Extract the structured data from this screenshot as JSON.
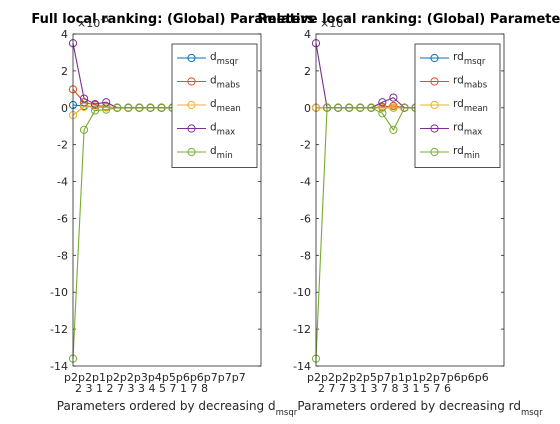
{
  "chart_data": [
    {
      "type": "line",
      "title": "Full local ranking: (Global) Parameters",
      "exponent_label": "×10",
      "exponent_value": "-6",
      "xlabel_main": "Parameters ordered by decreasing d",
      "xlabel_sub": "msqr",
      "ylim": [
        -14,
        4
      ],
      "yticks": [
        4,
        2,
        0,
        -2,
        -4,
        -6,
        -8,
        -10,
        -12,
        -14
      ],
      "xlim": [
        1,
        18
      ],
      "xtick_labels_text": [
        "p2p2p1p2p2p3p4p5p6p6p7p7p7",
        "2 3 1 2 7 3 3 4 5 7 1 7 8"
      ],
      "legend_location": "top-right",
      "legend": [
        {
          "base": "d",
          "sub": "msqr",
          "color": "#0072BD"
        },
        {
          "base": "d",
          "sub": "mabs",
          "color": "#D95319"
        },
        {
          "base": "d",
          "sub": "mean",
          "color": "#EDB120"
        },
        {
          "base": "d",
          "sub": "max",
          "color": "#7E2F8E"
        },
        {
          "base": "d",
          "sub": "min",
          "color": "#77AC30"
        }
      ],
      "series": [
        {
          "name": "d_msqr",
          "color": "#0072BD",
          "x": [
            1,
            2,
            3,
            4,
            5,
            6,
            7,
            8,
            9,
            10,
            11,
            12,
            13
          ],
          "values": [
            0.15,
            0.1,
            0.05,
            0.02,
            0,
            0,
            0,
            0,
            0,
            0,
            0,
            0,
            0
          ]
        },
        {
          "name": "d_mabs",
          "color": "#D95319",
          "x": [
            1,
            2,
            3,
            4,
            5,
            6,
            7,
            8,
            9,
            10,
            11,
            12,
            13
          ],
          "values": [
            1.0,
            0.3,
            0.15,
            0.05,
            0,
            0,
            0,
            0,
            0,
            0,
            0,
            0,
            0
          ]
        },
        {
          "name": "d_mean",
          "color": "#EDB120",
          "x": [
            1,
            2,
            3,
            4,
            5,
            6,
            7,
            8,
            9,
            10,
            11,
            12,
            13
          ],
          "values": [
            -0.4,
            0.05,
            0.05,
            0.02,
            0,
            0,
            0,
            0,
            0,
            0,
            0,
            0,
            0
          ]
        },
        {
          "name": "d_max",
          "color": "#7E2F8E",
          "x": [
            1,
            2,
            3,
            4,
            5,
            6,
            7,
            8,
            9,
            10,
            11,
            12,
            13
          ],
          "values": [
            3.5,
            0.5,
            0.2,
            0.3,
            0,
            0,
            0,
            0,
            0,
            0,
            0,
            0,
            0
          ]
        },
        {
          "name": "d_min",
          "color": "#77AC30",
          "x": [
            1,
            2,
            3,
            4,
            5,
            6,
            7,
            8,
            9,
            10,
            11,
            12,
            13
          ],
          "values": [
            -13.6,
            -1.2,
            -0.15,
            -0.1,
            0,
            0,
            0,
            0,
            0,
            0,
            0,
            0,
            0
          ]
        }
      ]
    },
    {
      "type": "line",
      "title": "Relative local ranking: (Global) Parameters",
      "exponent_label": "×10",
      "exponent_value": "-6",
      "xlabel_main": "Parameters ordered by decreasing rd",
      "xlabel_sub": "msqr",
      "ylim": [
        -14,
        4
      ],
      "yticks": [
        4,
        2,
        0,
        -2,
        -4,
        -6,
        -8,
        -10,
        -12,
        -14
      ],
      "xlim": [
        1,
        18
      ],
      "xtick_labels_text": [
        "p2p2p2p2p5p7p1p1p2p7p6p6p6",
        "2 7 7 3 1 3 7 8 3 1 5 7 6"
      ],
      "legend_location": "top-right",
      "legend": [
        {
          "base": "rd",
          "sub": "msqr",
          "color": "#0072BD"
        },
        {
          "base": "rd",
          "sub": "mabs",
          "color": "#D95319"
        },
        {
          "base": "rd",
          "sub": "mean",
          "color": "#EDB120"
        },
        {
          "base": "rd",
          "sub": "max",
          "color": "#7E2F8E"
        },
        {
          "base": "rd",
          "sub": "min",
          "color": "#77AC30"
        }
      ],
      "series": [
        {
          "name": "rd_msqr",
          "color": "#0072BD",
          "x": [
            1,
            2,
            3,
            4,
            5,
            6,
            7,
            8,
            9,
            10,
            11,
            12,
            13
          ],
          "values": [
            0,
            0,
            0,
            0,
            0,
            0,
            0,
            0,
            0,
            0,
            0,
            0,
            0
          ]
        },
        {
          "name": "rd_mabs",
          "color": "#D95319",
          "x": [
            1,
            2,
            3,
            4,
            5,
            6,
            7,
            8,
            9,
            10,
            11,
            12,
            13
          ],
          "values": [
            0,
            0,
            0,
            0,
            0,
            0,
            0.05,
            0.1,
            0,
            0,
            0,
            0,
            0
          ]
        },
        {
          "name": "rd_mean",
          "color": "#EDB120",
          "x": [
            1,
            2,
            3,
            4,
            5,
            6,
            7,
            8,
            9,
            10,
            11,
            12,
            13
          ],
          "values": [
            0,
            0,
            0,
            0,
            0,
            0,
            0,
            0,
            0,
            0,
            0,
            0,
            0
          ]
        },
        {
          "name": "rd_max",
          "color": "#7E2F8E",
          "x": [
            1,
            2,
            3,
            4,
            5,
            6,
            7,
            8,
            9,
            10,
            11,
            12,
            13
          ],
          "values": [
            3.5,
            0,
            0,
            0,
            0,
            0,
            0.3,
            0.55,
            0,
            0,
            0,
            0,
            0
          ]
        },
        {
          "name": "rd_min",
          "color": "#77AC30",
          "x": [
            1,
            2,
            3,
            4,
            5,
            6,
            7,
            8,
            9,
            10,
            11,
            12,
            13
          ],
          "values": [
            -13.6,
            0,
            0,
            0,
            0,
            0,
            -0.3,
            -1.2,
            0,
            0,
            0,
            0,
            0
          ]
        }
      ]
    }
  ]
}
